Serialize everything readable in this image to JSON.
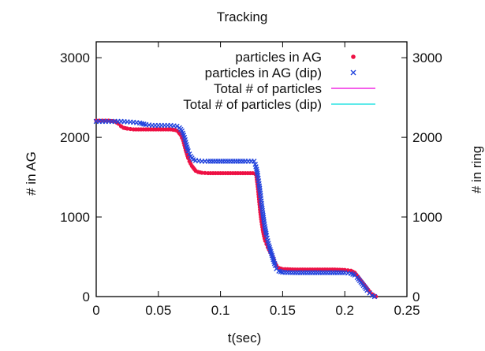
{
  "chart_data": {
    "type": "scatter",
    "title": "Tracking",
    "xlabel": "t(sec)",
    "ylabel": "# in AG",
    "y2label": "# in ring",
    "xlim": [
      0,
      0.25
    ],
    "ylim": [
      0,
      3200
    ],
    "xticks": [
      0,
      0.05,
      0.1,
      0.15,
      0.2,
      0.25
    ],
    "xtick_labels": [
      "0",
      "0.05",
      "0.1",
      "0.15",
      "0.2",
      "0.25"
    ],
    "yticks": [
      0,
      1000,
      2000,
      3000
    ],
    "ytick_labels": [
      "0",
      "1000",
      "2000",
      "3000"
    ],
    "y2tick_labels": [
      "0",
      "1000",
      "2000",
      "3000"
    ],
    "grid": false,
    "legend_position": "top-right",
    "series": [
      {
        "name": "particles in AG",
        "marker": "dot",
        "color": "#ee1144",
        "points": [
          [
            0,
            2210
          ],
          [
            0.005,
            2210
          ],
          [
            0.01,
            2210
          ],
          [
            0.015,
            2200
          ],
          [
            0.018,
            2170
          ],
          [
            0.02,
            2140
          ],
          [
            0.022,
            2120
          ],
          [
            0.025,
            2110
          ],
          [
            0.03,
            2100
          ],
          [
            0.04,
            2100
          ],
          [
            0.05,
            2100
          ],
          [
            0.06,
            2100
          ],
          [
            0.064,
            2090
          ],
          [
            0.066,
            2070
          ],
          [
            0.068,
            2030
          ],
          [
            0.07,
            1960
          ],
          [
            0.071,
            1900
          ],
          [
            0.072,
            1840
          ],
          [
            0.073,
            1790
          ],
          [
            0.074,
            1740
          ],
          [
            0.075,
            1700
          ],
          [
            0.076,
            1670
          ],
          [
            0.077,
            1640
          ],
          [
            0.078,
            1620
          ],
          [
            0.079,
            1600
          ],
          [
            0.08,
            1580
          ],
          [
            0.082,
            1565
          ],
          [
            0.085,
            1555
          ],
          [
            0.09,
            1550
          ],
          [
            0.1,
            1550
          ],
          [
            0.11,
            1550
          ],
          [
            0.12,
            1550
          ],
          [
            0.126,
            1550
          ],
          [
            0.128,
            1540
          ],
          [
            0.129,
            1500
          ],
          [
            0.13,
            1380
          ],
          [
            0.131,
            1220
          ],
          [
            0.132,
            1060
          ],
          [
            0.133,
            940
          ],
          [
            0.134,
            840
          ],
          [
            0.135,
            760
          ],
          [
            0.136,
            700
          ],
          [
            0.137,
            660
          ],
          [
            0.138,
            620
          ],
          [
            0.139,
            590
          ],
          [
            0.14,
            560
          ],
          [
            0.141,
            530
          ],
          [
            0.142,
            500
          ],
          [
            0.143,
            460
          ],
          [
            0.144,
            420
          ],
          [
            0.145,
            390
          ],
          [
            0.147,
            360
          ],
          [
            0.15,
            345
          ],
          [
            0.16,
            340
          ],
          [
            0.17,
            340
          ],
          [
            0.18,
            340
          ],
          [
            0.19,
            340
          ],
          [
            0.2,
            335
          ],
          [
            0.205,
            325
          ],
          [
            0.208,
            300
          ],
          [
            0.21,
            260
          ],
          [
            0.212,
            220
          ],
          [
            0.214,
            180
          ],
          [
            0.216,
            140
          ],
          [
            0.218,
            100
          ],
          [
            0.22,
            60
          ],
          [
            0.222,
            30
          ],
          [
            0.224,
            10
          ],
          [
            0.225,
            0
          ]
        ]
      },
      {
        "name": "particles in AG (dip)",
        "marker": "cross",
        "color": "#2244dd",
        "points": [
          [
            0,
            2200
          ],
          [
            0.005,
            2200
          ],
          [
            0.01,
            2200
          ],
          [
            0.015,
            2200
          ],
          [
            0.02,
            2200
          ],
          [
            0.025,
            2195
          ],
          [
            0.03,
            2190
          ],
          [
            0.035,
            2180
          ],
          [
            0.04,
            2160
          ],
          [
            0.045,
            2150
          ],
          [
            0.05,
            2150
          ],
          [
            0.055,
            2150
          ],
          [
            0.06,
            2150
          ],
          [
            0.065,
            2140
          ],
          [
            0.067,
            2120
          ],
          [
            0.069,
            2080
          ],
          [
            0.071,
            2000
          ],
          [
            0.072,
            1940
          ],
          [
            0.073,
            1880
          ],
          [
            0.074,
            1830
          ],
          [
            0.075,
            1790
          ],
          [
            0.076,
            1760
          ],
          [
            0.077,
            1740
          ],
          [
            0.078,
            1720
          ],
          [
            0.08,
            1710
          ],
          [
            0.085,
            1700
          ],
          [
            0.09,
            1700
          ],
          [
            0.1,
            1700
          ],
          [
            0.11,
            1700
          ],
          [
            0.12,
            1700
          ],
          [
            0.127,
            1700
          ],
          [
            0.128,
            1660
          ],
          [
            0.129,
            1600
          ],
          [
            0.13,
            1520
          ],
          [
            0.131,
            1420
          ],
          [
            0.132,
            1300
          ],
          [
            0.133,
            1170
          ],
          [
            0.134,
            1050
          ],
          [
            0.135,
            940
          ],
          [
            0.136,
            850
          ],
          [
            0.137,
            770
          ],
          [
            0.138,
            700
          ],
          [
            0.139,
            640
          ],
          [
            0.14,
            590
          ],
          [
            0.141,
            540
          ],
          [
            0.142,
            490
          ],
          [
            0.143,
            440
          ],
          [
            0.144,
            390
          ],
          [
            0.145,
            350
          ],
          [
            0.147,
            320
          ],
          [
            0.15,
            305
          ],
          [
            0.16,
            300
          ],
          [
            0.17,
            300
          ],
          [
            0.18,
            300
          ],
          [
            0.19,
            300
          ],
          [
            0.2,
            300
          ],
          [
            0.205,
            290
          ],
          [
            0.208,
            270
          ],
          [
            0.21,
            240
          ],
          [
            0.212,
            200
          ],
          [
            0.214,
            160
          ],
          [
            0.216,
            120
          ],
          [
            0.218,
            80
          ],
          [
            0.22,
            45
          ],
          [
            0.222,
            15
          ],
          [
            0.224,
            0
          ]
        ]
      },
      {
        "name": "Total # of particles",
        "marker": "line",
        "color": "#ee00dd",
        "points": []
      },
      {
        "name": "Total # of particles (dip)",
        "marker": "line",
        "color": "#00dddd",
        "points": []
      }
    ]
  }
}
